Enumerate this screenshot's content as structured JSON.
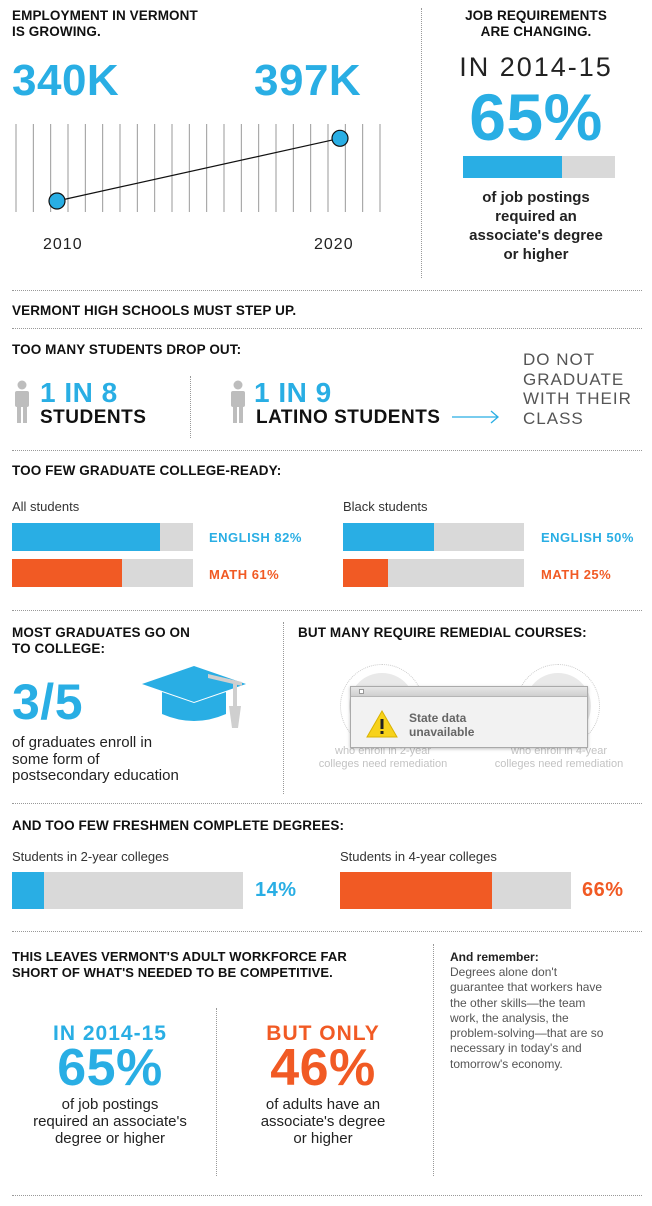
{
  "colors": {
    "blue": "#29aee4",
    "orange": "#f15a24",
    "gray": "#d9d9d9",
    "dark": "#111111"
  },
  "employment": {
    "title": "EMPLOYMENT IN VERMONT IS GROWING.",
    "title_l1": "EMPLOYMENT IN VERMONT",
    "title_l2": "IS GROWING."
  },
  "chart_data": [
    {
      "type": "line",
      "x": [
        "2010",
        "2020"
      ],
      "series": [
        {
          "values": [
            340,
            397
          ]
        }
      ],
      "value_labels": [
        "340K",
        "397K"
      ],
      "ylim": [
        330,
        410
      ]
    },
    {
      "type": "bar",
      "name": "college_ready_all",
      "group": "All students",
      "categories": [
        "ENGLISH",
        "MATH"
      ],
      "values": [
        82,
        61
      ],
      "max": 100
    },
    {
      "type": "bar",
      "name": "college_ready_black",
      "group": "Black students",
      "categories": [
        "ENGLISH",
        "MATH"
      ],
      "values": [
        50,
        25
      ],
      "max": 100
    },
    {
      "type": "bar",
      "name": "completion",
      "categories": [
        "Students in 2-year colleges",
        "Students in 4-year colleges"
      ],
      "values": [
        14,
        66
      ],
      "max": 100
    }
  ],
  "job_req": {
    "title_l1": "JOB REQUIREMENTS",
    "title_l2": "ARE CHANGING.",
    "year": "IN 2014-15",
    "pct": "65%",
    "pct_value": 65,
    "desc_l1": "of job postings",
    "desc_l2": "required an",
    "desc_l3": "associate's degree",
    "desc_l4": "or higher"
  },
  "hs": {
    "title": "VERMONT HIGH SCHOOLS MUST STEP UP."
  },
  "dropout": {
    "title": "TOO MANY STUDENTS DROP OUT:",
    "a_ratio": "1 IN 8",
    "a_label": "STUDENTS",
    "b_ratio": "1 IN 9",
    "b_label": "LATINO STUDENTS",
    "result_l1": "DO NOT",
    "result_l2": "GRADUATE",
    "result_l3": "WITH THEIR",
    "result_l4": "CLASS"
  },
  "ready": {
    "title": "TOO FEW GRADUATE COLLEGE-READY:",
    "all_label": "All students",
    "black_label": "Black students",
    "all_english": "ENGLISH 82%",
    "all_math": "MATH 61%",
    "black_english": "ENGLISH 50%",
    "black_math": "MATH 25%"
  },
  "college": {
    "title_l1": "MOST GRADUATES GO ON",
    "title_l2": "TO COLLEGE:",
    "fraction": "3/5",
    "desc_l1": "of graduates enroll in",
    "desc_l2": "some form of",
    "desc_l3": "postsecondary education"
  },
  "remedial": {
    "title": "BUT MANY REQUIRE REMEDIAL COURSES:",
    "a_l1": "who enroll in 2-year",
    "a_l2": "colleges need remediation",
    "b_l1": "who enroll in 4-year",
    "b_l2": "colleges need remediation",
    "notice_l1": "State data",
    "notice_l2": "unavailable"
  },
  "freshmen": {
    "title": "AND TOO FEW FRESHMEN COMPLETE DEGREES:",
    "two_label": "Students in 2-year colleges",
    "four_label": "Students in 4-year colleges",
    "two_pct": "14%",
    "four_pct": "66%"
  },
  "workforce": {
    "title_l1": "THIS LEAVES VERMONT'S ADULT WORKFORCE FAR",
    "title_l2": "SHORT OF WHAT'S NEEDED TO BE COMPETITIVE.",
    "left_year": "IN 2014-15",
    "left_pct": "65%",
    "left_l1": "of job postings",
    "left_l2": "required an associate's",
    "left_l3": "degree or higher",
    "right_lead": "BUT ONLY",
    "right_pct": "46%",
    "right_l1": "of adults have an",
    "right_l2": "associate's degree",
    "right_l3": "or higher"
  },
  "remember": {
    "title": "And remember:",
    "l1": "Degrees alone don't",
    "l2": "guarantee that workers have",
    "l3": "the other skills—the team",
    "l4": "work, the analysis, the",
    "l5": "problem-solving—that are so",
    "l6": "necessary in today's and",
    "l7": "tomorrow's economy."
  }
}
